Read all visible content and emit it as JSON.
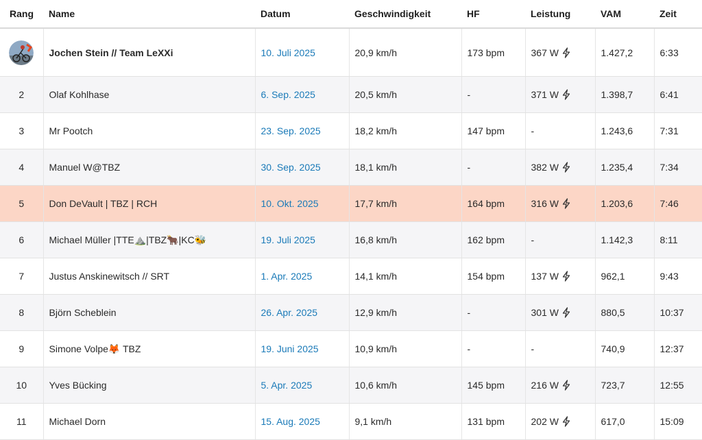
{
  "columns": {
    "rank": "Rang",
    "name": "Name",
    "date": "Datum",
    "speed": "Geschwindigkeit",
    "hr": "HF",
    "power": "Leistung",
    "vam": "VAM",
    "time": "Zeit"
  },
  "icons": {
    "power": "lightning-bolt-icon",
    "avatar": "cyclist-avatar"
  },
  "colors": {
    "date_link": "#1a7ab8",
    "highlight_row": "#fcd6c6",
    "stripe": "#f5f5f7"
  },
  "rows": [
    {
      "rank": "",
      "name": "Jochen Stein // Team LeXXi",
      "date": "10. Juli 2025",
      "speed": "20,9 km/h",
      "hr": "173 bpm",
      "power": "367 W",
      "power_icon": true,
      "vam": "1.427,2",
      "time": "6:33"
    },
    {
      "rank": "2",
      "name": "Olaf Kohlhase",
      "date": "6. Sep. 2025",
      "speed": "20,5 km/h",
      "hr": "-",
      "power": "371 W",
      "power_icon": true,
      "vam": "1.398,7",
      "time": "6:41"
    },
    {
      "rank": "3",
      "name": "Mr Pootch",
      "date": "23. Sep. 2025",
      "speed": "18,2 km/h",
      "hr": "147 bpm",
      "power": "-",
      "power_icon": false,
      "vam": "1.243,6",
      "time": "7:31"
    },
    {
      "rank": "4",
      "name": "Manuel W@TBZ",
      "date": "30. Sep. 2025",
      "speed": "18,1 km/h",
      "hr": "-",
      "power": "382 W",
      "power_icon": true,
      "vam": "1.235,4",
      "time": "7:34"
    },
    {
      "rank": "5",
      "name": "Don DeVault | TBZ | RCH",
      "date": "10. Okt. 2025",
      "speed": "17,7 km/h",
      "hr": "164 bpm",
      "power": "316 W",
      "power_icon": true,
      "vam": "1.203,6",
      "time": "7:46"
    },
    {
      "rank": "6",
      "name": "Michael Müller |TTE⛰️|TBZ🐂|KC🐝",
      "date": "19. Juli 2025",
      "speed": "16,8 km/h",
      "hr": "162 bpm",
      "power": "-",
      "power_icon": false,
      "vam": "1.142,3",
      "time": "8:11"
    },
    {
      "rank": "7",
      "name": "Justus Anskinewitsch // SRT",
      "date": "1. Apr. 2025",
      "speed": "14,1 km/h",
      "hr": "154 bpm",
      "power": "137 W",
      "power_icon": true,
      "vam": "962,1",
      "time": "9:43"
    },
    {
      "rank": "8",
      "name": "Björn Scheblein",
      "date": "26. Apr. 2025",
      "speed": "12,9 km/h",
      "hr": "-",
      "power": "301 W",
      "power_icon": true,
      "vam": "880,5",
      "time": "10:37"
    },
    {
      "rank": "9",
      "name": "Simone Volpe🦊 TBZ",
      "date": "19. Juni 2025",
      "speed": "10,9 km/h",
      "hr": "-",
      "power": "-",
      "power_icon": false,
      "vam": "740,9",
      "time": "12:37"
    },
    {
      "rank": "10",
      "name": "Yves Bücking",
      "date": "5. Apr. 2025",
      "speed": "10,6 km/h",
      "hr": "145 bpm",
      "power": "216 W",
      "power_icon": true,
      "vam": "723,7",
      "time": "12:55"
    },
    {
      "rank": "11",
      "name": "Michael Dorn",
      "date": "15. Aug. 2025",
      "speed": "9,1 km/h",
      "hr": "131 bpm",
      "power": "202 W",
      "power_icon": true,
      "vam": "617,0",
      "time": "15:09"
    }
  ]
}
